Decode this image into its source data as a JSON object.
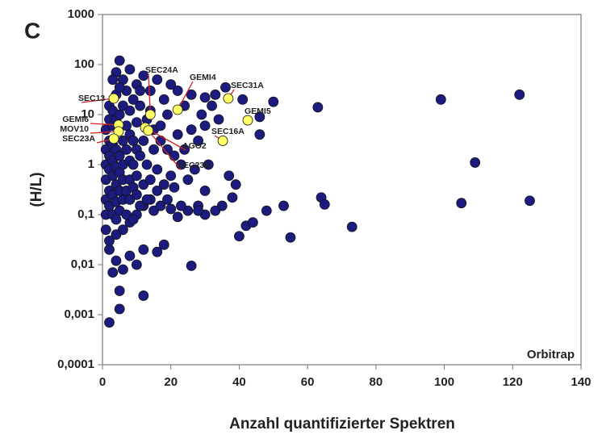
{
  "chart_data": {
    "type": "scatter",
    "panel_label": "C",
    "annotation": "Orbitrap",
    "xlabel": "Anzahl quantifizierter Spektren",
    "ylabel": "(H/L)",
    "xlim": [
      0,
      140
    ],
    "xticks": [
      0,
      20,
      40,
      60,
      80,
      100,
      120,
      140
    ],
    "ylim": [
      0.0001,
      1000
    ],
    "yscale": "log",
    "yticks": [
      {
        "value": 0.0001,
        "label": "0,0001"
      },
      {
        "value": 0.001,
        "label": "0,001"
      },
      {
        "value": 0.01,
        "label": "0,01"
      },
      {
        "value": 0.1,
        "label": "0,1"
      },
      1,
      10,
      100,
      1000
    ],
    "grid": false,
    "series": [
      {
        "color": "#1c1c80",
        "x": [
          99,
          122,
          109,
          125,
          105,
          73,
          63,
          64,
          65,
          53,
          55,
          40,
          39,
          50,
          46,
          46,
          41,
          36,
          26,
          12,
          2,
          5,
          5,
          3,
          5,
          4,
          3,
          35,
          30,
          38,
          30,
          33,
          28,
          25,
          22,
          20,
          18,
          16,
          12,
          10,
          8,
          6,
          4,
          2,
          25,
          27,
          24,
          28,
          30,
          32,
          33,
          30,
          26,
          22,
          20,
          18,
          16,
          14,
          12,
          10,
          8,
          6,
          7,
          9,
          11,
          13,
          15,
          17,
          19,
          21,
          23,
          20,
          18,
          16,
          14,
          12,
          10,
          8,
          6,
          4,
          2,
          1,
          1,
          1,
          1,
          1,
          1,
          1,
          2,
          2,
          2,
          2,
          2,
          2,
          2,
          3,
          3,
          3,
          3,
          3,
          3,
          3,
          4,
          4,
          4,
          4,
          4,
          4,
          4,
          5,
          5,
          5,
          5,
          5,
          5,
          6,
          6,
          6,
          6,
          6,
          7,
          7,
          7,
          7,
          8,
          8,
          8,
          8,
          8,
          9,
          9,
          9,
          9,
          10,
          10,
          10,
          10,
          11,
          11,
          11,
          12,
          12,
          13,
          13,
          14,
          14,
          15,
          15,
          16,
          17,
          17,
          19,
          19,
          21,
          22,
          23,
          24,
          26,
          28,
          29,
          31,
          34,
          37,
          42,
          44,
          48
        ],
        "values": [
          20,
          25,
          1.1,
          0.19,
          0.17,
          0.057,
          14,
          0.22,
          0.16,
          0.15,
          0.035,
          0.037,
          0.4,
          18,
          4,
          9,
          20,
          35,
          0.0095,
          0.0024,
          0.0007,
          0.0013,
          0.003,
          0.007,
          120,
          70,
          50,
          0.15,
          0.3,
          0.22,
          0.1,
          0.12,
          0.15,
          0.12,
          0.09,
          0.13,
          0.025,
          0.018,
          0.02,
          0.01,
          0.015,
          0.008,
          0.012,
          0.02,
          0.5,
          0.8,
          2,
          3,
          6,
          15,
          25,
          22,
          25,
          30,
          40,
          20,
          50,
          30,
          60,
          40,
          80,
          50,
          30,
          20,
          15,
          8,
          5,
          3,
          2,
          1.5,
          1,
          0.6,
          0.4,
          0.3,
          0.2,
          0.15,
          0.1,
          0.07,
          0.05,
          0.04,
          0.03,
          0.1,
          0.2,
          0.5,
          1,
          2,
          5,
          0.05,
          0.15,
          0.3,
          0.8,
          1.5,
          3,
          8,
          15,
          0.1,
          0.25,
          0.6,
          1.2,
          2.5,
          6,
          12,
          0.08,
          0.18,
          0.4,
          0.9,
          2,
          8,
          25,
          0.12,
          0.3,
          0.7,
          1.5,
          10,
          35,
          0.2,
          0.5,
          1,
          3,
          15,
          0.1,
          0.3,
          2,
          6,
          0.2,
          0.5,
          1.2,
          4,
          12,
          0.08,
          0.35,
          1,
          3,
          0.25,
          0.6,
          2,
          7,
          0.15,
          1.5,
          30,
          0.4,
          3,
          0.2,
          1,
          0.5,
          12,
          0.12,
          2,
          0.8,
          0.15,
          6,
          0.2,
          10,
          0.35,
          4,
          0.15,
          15,
          5,
          0.12,
          10,
          1,
          8,
          0.6,
          0.06,
          0.07,
          0.12
        ]
      },
      {
        "color": "#ffff66",
        "x": [
          3.3,
          14,
          22,
          36.8,
          42.5,
          35.2,
          4.7,
          4.7,
          3.3,
          12.5,
          13.4
        ],
        "values": [
          21,
          10,
          12.5,
          21,
          7.7,
          3,
          6.2,
          4.6,
          3.3,
          5.5,
          4.8
        ],
        "labels": [
          "SEC13",
          "SEC24A",
          "GEMI4",
          "SEC31A",
          "GEMI5",
          "SEC16A",
          "GEMI6",
          "MOV10",
          "SEC23A",
          "AGO2",
          "SEC23B"
        ],
        "label_line_color": "#d42020"
      }
    ]
  }
}
